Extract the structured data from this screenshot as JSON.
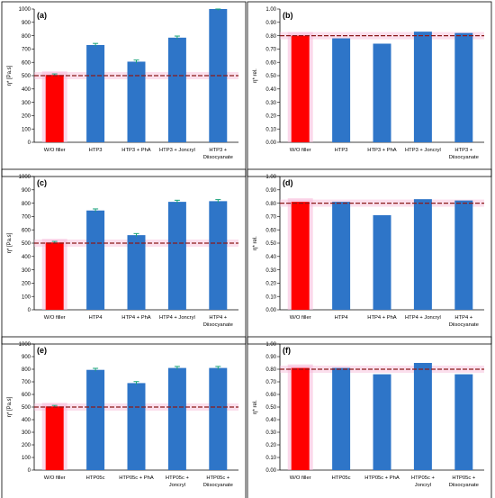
{
  "colors": {
    "reference_bar": "#ff0000",
    "filler_bar": "#2e75c8",
    "reference_line": "#8b1a1a",
    "highlight": "#f7b8d8",
    "error_cap": "#1aa37a"
  },
  "chart_data": [
    {
      "panel_label": "(a)",
      "type": "bar",
      "ylabel": "η* [Pa.s]",
      "ylim": [
        0,
        1000
      ],
      "yticks": [
        0,
        100,
        200,
        300,
        400,
        500,
        600,
        700,
        800,
        900,
        1000
      ],
      "ytick_labels": [
        "0",
        "100",
        "200",
        "300",
        "400",
        "500",
        "600",
        "700",
        "800",
        "900",
        "1000"
      ],
      "reference_value": 500,
      "categories": [
        "W/O filler",
        "HTP3",
        "HTP3 + PhA",
        "HTP3 + Joncryl",
        "HTP3 + Diisocyanate"
      ],
      "category_labels": [
        [
          "W/O filler"
        ],
        [
          "HTP3"
        ],
        [
          "HTP3 + PhA"
        ],
        [
          "HTP3 + Joncryl"
        ],
        [
          "HTP3 +",
          "Diisocyanate"
        ]
      ],
      "values": [
        505,
        730,
        605,
        785,
        1000
      ],
      "errors": [
        8,
        12,
        12,
        12,
        10
      ]
    },
    {
      "panel_label": "(b)",
      "type": "bar",
      "ylabel": "η* rel.",
      "ylim": [
        0,
        1
      ],
      "yticks": [
        0,
        0.1,
        0.2,
        0.3,
        0.4,
        0.5,
        0.6,
        0.7,
        0.8,
        0.9,
        1.0
      ],
      "ytick_labels": [
        "0.00",
        "0.10",
        "0.20",
        "0.30",
        "0.40",
        "0.50",
        "0.60",
        "0.70",
        "0.80",
        "0.90",
        "1.00"
      ],
      "reference_value": 0.8,
      "categories": [
        "W/O filler",
        "HTP3",
        "HTP3 + PhA",
        "HTP3 + Joncryl",
        "HTP3 + Diisocyanate"
      ],
      "category_labels": [
        [
          "W/O filler"
        ],
        [
          "HTP3"
        ],
        [
          "HTP3 + PhA"
        ],
        [
          "HTP3 + Joncryl"
        ],
        [
          "HTP3 +",
          "Diisocyanate"
        ]
      ],
      "values": [
        0.8,
        0.78,
        0.74,
        0.83,
        0.82
      ],
      "errors": [
        0,
        0,
        0,
        0,
        0
      ]
    },
    {
      "panel_label": "(c)",
      "type": "bar",
      "ylabel": "η* [Pa.s]",
      "ylim": [
        0,
        1000
      ],
      "yticks": [
        0,
        100,
        200,
        300,
        400,
        500,
        600,
        700,
        800,
        900,
        1000
      ],
      "ytick_labels": [
        "0",
        "100",
        "200",
        "300",
        "400",
        "500",
        "600",
        "700",
        "800",
        "900",
        "1000"
      ],
      "reference_value": 500,
      "categories": [
        "W/O filler",
        "HTP4",
        "HTP4 + PhA",
        "HTP4 + Joncryl",
        "HTP4 + Diisocyanate"
      ],
      "category_labels": [
        [
          "W/O filler"
        ],
        [
          "HTP4"
        ],
        [
          "HTP4 + PhA"
        ],
        [
          "HTP4 + Joncryl"
        ],
        [
          "HTP4 +",
          "Diisocyanate"
        ]
      ],
      "values": [
        505,
        745,
        560,
        810,
        815
      ],
      "errors": [
        8,
        12,
        12,
        12,
        12
      ]
    },
    {
      "panel_label": "(d)",
      "type": "bar",
      "ylabel": "η* rel.",
      "ylim": [
        0,
        1
      ],
      "yticks": [
        0,
        0.1,
        0.2,
        0.3,
        0.4,
        0.5,
        0.6,
        0.7,
        0.8,
        0.9,
        1.0
      ],
      "ytick_labels": [
        "0.00",
        "0.10",
        "0.20",
        "0.30",
        "0.40",
        "0.50",
        "0.60",
        "0.70",
        "0.80",
        "0.90",
        "1.00"
      ],
      "reference_value": 0.8,
      "categories": [
        "W/O filler",
        "HTP4",
        "HTP4 + PhA",
        "HTP4 + Joncryl",
        "HTP4 + Diisocyanate"
      ],
      "category_labels": [
        [
          "W/O filler"
        ],
        [
          "HTP4"
        ],
        [
          "HTP4 + PhA"
        ],
        [
          "HTP4 + Joncryl"
        ],
        [
          "HTP4 +",
          "Diisocyanate"
        ]
      ],
      "values": [
        0.81,
        0.81,
        0.71,
        0.83,
        0.82
      ],
      "errors": [
        0,
        0,
        0,
        0,
        0
      ]
    },
    {
      "panel_label": "(e)",
      "type": "bar",
      "ylabel": "η* [Pa.s]",
      "ylim": [
        0,
        1000
      ],
      "yticks": [
        0,
        100,
        200,
        300,
        400,
        500,
        600,
        700,
        800,
        900,
        1000
      ],
      "ytick_labels": [
        "0",
        "100",
        "200",
        "300",
        "400",
        "500",
        "600",
        "700",
        "800",
        "900",
        "1000"
      ],
      "reference_value": 500,
      "categories": [
        "W/O filler",
        "HTP05c",
        "HTP05c + PhA",
        "HTP05c + Joncryl",
        "HTP05c + Diisocyanate"
      ],
      "category_labels": [
        [
          "W/O filler"
        ],
        [
          "HTP05c"
        ],
        [
          "HTP05c + PhA"
        ],
        [
          "HTP05c +",
          "Joncryl"
        ],
        [
          "HTP05c +",
          "Diisocyanate"
        ]
      ],
      "values": [
        505,
        795,
        690,
        810,
        810
      ],
      "errors": [
        8,
        12,
        12,
        12,
        12
      ]
    },
    {
      "panel_label": "(f)",
      "type": "bar",
      "ylabel": "η* rel.",
      "ylim": [
        0,
        1
      ],
      "yticks": [
        0,
        0.1,
        0.2,
        0.3,
        0.4,
        0.5,
        0.6,
        0.7,
        0.8,
        0.9,
        1.0
      ],
      "ytick_labels": [
        "0.00",
        "0.10",
        "0.20",
        "0.30",
        "0.40",
        "0.50",
        "0.60",
        "0.70",
        "0.80",
        "0.90",
        "1.00"
      ],
      "reference_value": 0.8,
      "categories": [
        "W/O filler",
        "HTP05c",
        "HTP05c + PhA",
        "HTP05c + Joncryl",
        "HTP05c + Diisocyanate"
      ],
      "category_labels": [
        [
          "W/O filler"
        ],
        [
          "HTP05c"
        ],
        [
          "HTP05c + PhA"
        ],
        [
          "HTP05c +",
          "Joncryl"
        ],
        [
          "HTP05c +",
          "Diisocyanate"
        ]
      ],
      "values": [
        0.81,
        0.81,
        0.76,
        0.85,
        0.76
      ],
      "errors": [
        0,
        0,
        0,
        0,
        0
      ]
    }
  ]
}
